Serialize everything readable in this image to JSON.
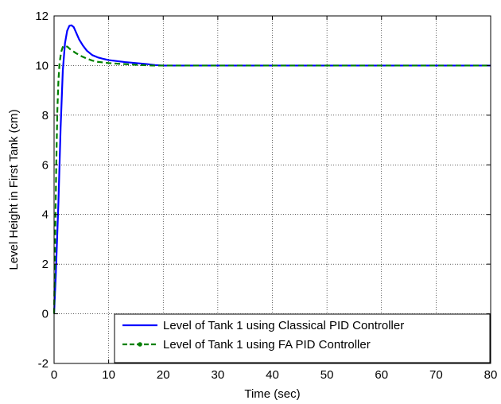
{
  "chart_data": {
    "type": "line",
    "xlabel": "Time (sec)",
    "ylabel": "Level Height in First Tank (cm)",
    "xlim": [
      0,
      80
    ],
    "ylim": [
      -2,
      12
    ],
    "xticks": [
      0,
      10,
      20,
      30,
      40,
      50,
      60,
      70,
      80
    ],
    "yticks": [
      -2,
      0,
      2,
      4,
      6,
      8,
      10,
      12
    ],
    "grid": true,
    "legend_position": "bottom-right",
    "series": [
      {
        "name": "Level of Tank 1 using Classical PID Controller",
        "color": "#0000ff",
        "style": "solid",
        "x": [
          0,
          0.3,
          0.8,
          1.2,
          1.6,
          2.0,
          2.4,
          2.8,
          3.2,
          3.6,
          4.0,
          4.6,
          5.3,
          6.0,
          7.0,
          8.0,
          9.0,
          10.0,
          11.5,
          13.0,
          15.0,
          17.0,
          18.5,
          20.0,
          25.0,
          30.0,
          40.0,
          50.0,
          60.0,
          70.0,
          80.0
        ],
        "y": [
          0,
          1.5,
          4.5,
          7.5,
          9.8,
          10.9,
          11.4,
          11.6,
          11.62,
          11.55,
          11.35,
          11.05,
          10.8,
          10.6,
          10.42,
          10.33,
          10.27,
          10.22,
          10.18,
          10.14,
          10.1,
          10.06,
          10.02,
          10.0,
          10.0,
          10.0,
          10.0,
          10.0,
          10.0,
          10.0,
          10.0
        ]
      },
      {
        "name": "Level of Tank 1 using FA PID Controller",
        "color": "#008000",
        "style": "dashed",
        "x": [
          0,
          0.2,
          0.4,
          0.6,
          0.8,
          1.0,
          1.3,
          1.6,
          2.0,
          2.5,
          3.0,
          4.0,
          5.0,
          6.0,
          7.0,
          8.0,
          10.0,
          12.0,
          15.0,
          18.0,
          20.0,
          30.0,
          40.0,
          50.0,
          60.0,
          70.0,
          80.0
        ],
        "y": [
          0,
          3.0,
          6.0,
          8.2,
          9.4,
          10.1,
          10.55,
          10.75,
          10.8,
          10.75,
          10.65,
          10.5,
          10.38,
          10.28,
          10.2,
          10.15,
          10.1,
          10.07,
          10.03,
          10.0,
          10.0,
          10.0,
          10.0,
          10.0,
          10.0,
          10.0,
          10.0
        ]
      }
    ]
  }
}
